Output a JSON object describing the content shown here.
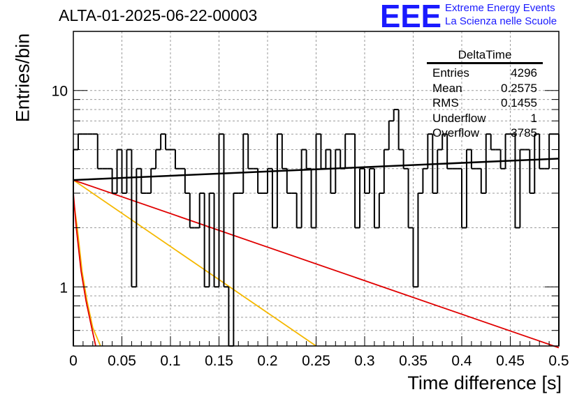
{
  "header": {
    "title": "ALTA-01-2025-06-22-00003",
    "logo_text": "EEE",
    "brand_line1": "Extreme Energy Events",
    "brand_line2": "La Scienza nelle Scuole"
  },
  "stats_box": {
    "title": "DeltaTime",
    "rows": [
      {
        "label": "Entries",
        "value": "4296"
      },
      {
        "label": "Mean",
        "value": "0.2575"
      },
      {
        "label": "RMS",
        "value": "0.1455"
      },
      {
        "label": "Underflow",
        "value": "1"
      },
      {
        "label": "Overflow",
        "value": "3785"
      }
    ]
  },
  "colors": {
    "histogram": "#000000",
    "grid": "#9a9a9a",
    "fit_black": "#000000",
    "fit_red": "#e00000",
    "fit_orange": "#f5b800",
    "logo": "#1a1aff"
  },
  "chart_data": {
    "type": "line",
    "title": "ALTA-01-2025-06-22-00003",
    "xlabel": "Time difference [s]",
    "ylabel": "Entries/bin",
    "y_scale": "log",
    "xlim": [
      0,
      0.5
    ],
    "ylim": [
      0.5,
      20
    ],
    "xticks": [
      "0",
      "0.05",
      "0.1",
      "0.15",
      "0.2",
      "0.25",
      "0.3",
      "0.35",
      "0.4",
      "0.45",
      "0.5"
    ],
    "yticks": [
      "1",
      "10"
    ],
    "grid": true,
    "histogram": {
      "bin_width": 0.005,
      "counts": [
        5,
        6,
        6,
        6,
        6,
        4,
        4,
        4,
        3,
        5,
        3,
        5,
        1,
        4,
        3,
        3,
        4,
        5,
        6,
        5,
        5,
        4,
        4,
        3,
        2,
        2,
        3,
        1,
        3,
        1,
        6,
        1,
        0,
        3,
        3,
        6,
        4,
        4,
        3,
        3,
        4,
        2,
        6,
        4,
        3,
        3,
        2,
        5,
        4,
        2,
        6,
        4,
        5,
        3,
        5,
        4,
        6,
        6,
        2,
        4,
        3,
        4,
        2,
        3,
        5,
        7,
        8,
        5,
        4,
        2,
        1,
        3,
        4,
        6,
        3,
        5,
        6,
        4,
        4,
        4,
        2,
        5,
        4,
        4,
        3,
        6,
        5,
        5,
        4,
        6,
        6,
        2,
        5,
        5,
        3,
        6,
        4,
        4,
        6,
        6
      ]
    },
    "series": [
      {
        "points": [
          [
            0,
            3.5
          ],
          [
            0.5,
            4.5
          ]
        ]
      },
      {
        "points": [
          [
            0,
            3.5
          ],
          [
            0.5,
            0.49
          ]
        ]
      },
      {
        "points": [
          [
            0,
            3.5
          ],
          [
            0.25,
            0.5
          ]
        ]
      },
      {
        "points": [
          [
            0,
            3.0
          ],
          [
            0.003,
            2.0
          ],
          [
            0.008,
            1.2
          ],
          [
            0.013,
            0.85
          ],
          [
            0.018,
            0.65
          ],
          [
            0.023,
            0.5
          ]
        ]
      },
      {
        "points": [
          [
            0,
            2.8
          ],
          [
            0.004,
            2.0
          ],
          [
            0.009,
            1.2
          ],
          [
            0.014,
            0.85
          ],
          [
            0.02,
            0.62
          ],
          [
            0.028,
            0.5
          ]
        ]
      }
    ]
  }
}
